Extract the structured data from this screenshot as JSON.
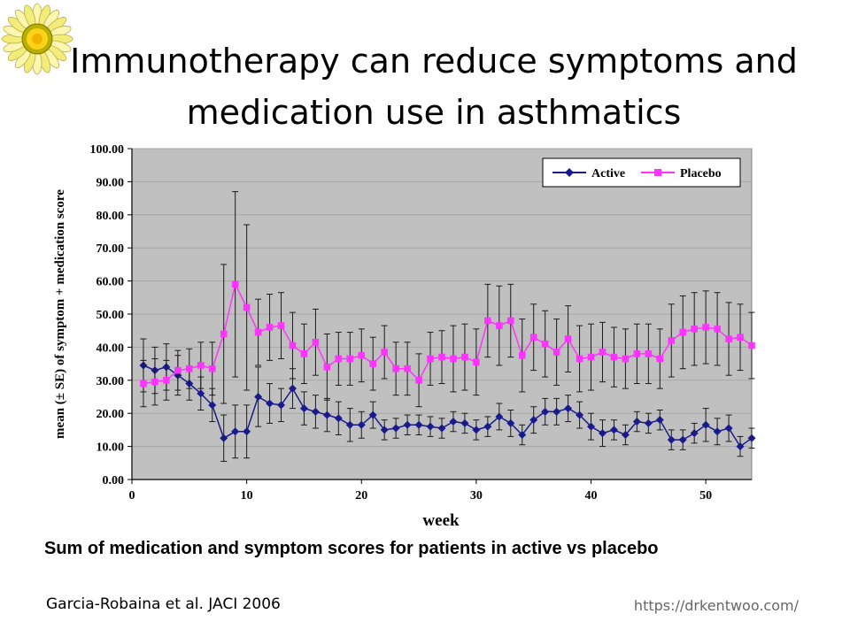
{
  "slide": {
    "title_line1": "Immunotherapy can reduce symptoms and",
    "title_line2": "medication use in asthmatics",
    "caption": "Sum of medication and symptom scores for patients in active vs placebo",
    "citation": "Garcia-Robaina et al. JACI 2006",
    "url": "https://drkentwoo.com/",
    "logo_icon": "sunflower-icon"
  },
  "chart_data": {
    "type": "line",
    "title": "",
    "xlabel": "week",
    "ylabel": "mean (± SE) of symptom + medication score",
    "xlim": [
      0,
      54
    ],
    "ylim": [
      0,
      100
    ],
    "xticks": [
      "0",
      "10",
      "20",
      "30",
      "40",
      "50"
    ],
    "xtick_values": [
      0,
      10,
      20,
      30,
      40,
      50
    ],
    "yticks": [
      "0.00",
      "10.00",
      "20.00",
      "30.00",
      "40.00",
      "50.00",
      "60.00",
      "70.00",
      "80.00",
      "90.00",
      "100.00"
    ],
    "ytick_values": [
      0,
      10,
      20,
      30,
      40,
      50,
      60,
      70,
      80,
      90,
      100
    ],
    "grid": true,
    "legend_position": "top-right",
    "plot_background": "#c0c0c0",
    "x": [
      1,
      2,
      3,
      4,
      5,
      6,
      7,
      8,
      9,
      10,
      11,
      12,
      13,
      14,
      15,
      16,
      17,
      18,
      19,
      20,
      21,
      22,
      23,
      24,
      25,
      26,
      27,
      28,
      29,
      30,
      31,
      32,
      33,
      34,
      35,
      36,
      37,
      38,
      39,
      40,
      41,
      42,
      43,
      44,
      45,
      46,
      47,
      48,
      49,
      50,
      51,
      52,
      53,
      54
    ],
    "series": [
      {
        "name": "Active",
        "color": "#1a1a8c",
        "marker": "diamond",
        "values": [
          34.5,
          33,
          34,
          31.5,
          29,
          26,
          22.5,
          12.5,
          14.5,
          14.5,
          25,
          23,
          22.5,
          27.5,
          21.5,
          20.5,
          19.5,
          18.5,
          16.5,
          16.5,
          19.5,
          15,
          15.5,
          16.5,
          16.5,
          16,
          15.5,
          17.5,
          17,
          15,
          16,
          19,
          17,
          13.5,
          18,
          20.5,
          20.5,
          21.5,
          19.5,
          16,
          14,
          15,
          13.5,
          17.5,
          17,
          18,
          12,
          12,
          14,
          16.5,
          14.5,
          15.5,
          10,
          12.5
        ],
        "errors": [
          8,
          7,
          7,
          6,
          5,
          5,
          5,
          7,
          8,
          8,
          9,
          6,
          5,
          6,
          5,
          5,
          5,
          5,
          5,
          4,
          4,
          3,
          3,
          3,
          3,
          3,
          3,
          3,
          3,
          3,
          3,
          4,
          4,
          3,
          4,
          4,
          4,
          4,
          4,
          4,
          4,
          3,
          3,
          3,
          3,
          3,
          3,
          3,
          3,
          5,
          4,
          4,
          3,
          3
        ]
      },
      {
        "name": "Placebo",
        "color": "#ff33ff",
        "marker": "square",
        "values": [
          29,
          29.5,
          30,
          33,
          33.5,
          34.5,
          33.5,
          44,
          59,
          52,
          44.5,
          46,
          46.5,
          40.5,
          38,
          41.5,
          34,
          36.5,
          36.5,
          37.5,
          35,
          38.5,
          33.5,
          33.5,
          30,
          36.5,
          37,
          36.5,
          37,
          35.5,
          48,
          46.5,
          48,
          37.5,
          43,
          41,
          38.5,
          42.5,
          36.5,
          37,
          38.5,
          37,
          36.5,
          38,
          38,
          36.5,
          42,
          44.5,
          45.5,
          46,
          45.5,
          42.5,
          43,
          40.5
        ],
        "errors": [
          7,
          7,
          6,
          6,
          6,
          7,
          8,
          21,
          28,
          25,
          10,
          10,
          10,
          10,
          9,
          10,
          10,
          8,
          8,
          8,
          8,
          8,
          8,
          8,
          8,
          8,
          8,
          10,
          10,
          10,
          11,
          12,
          11,
          11,
          10,
          10,
          10,
          10,
          10,
          10,
          9,
          9,
          9,
          9,
          9,
          9,
          11,
          11,
          11,
          11,
          11,
          11,
          10,
          10
        ]
      }
    ]
  }
}
